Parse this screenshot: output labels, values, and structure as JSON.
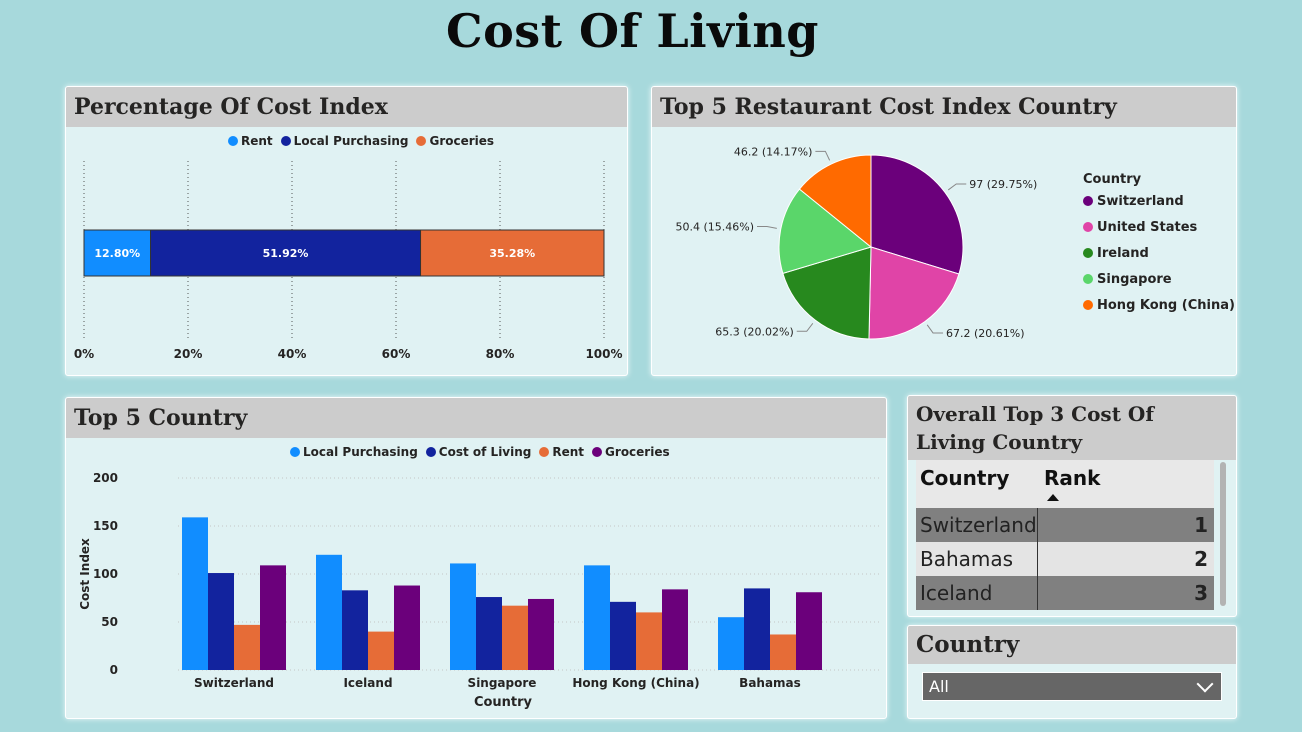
{
  "page": {
    "title": "Cost Of Living"
  },
  "panels": {
    "pct": {
      "title": "Percentage Of Cost Index"
    },
    "restaurant": {
      "title": "Top 5 Restaurant Cost Index Country",
      "legend_title": "Country"
    },
    "top5": {
      "title": "Top 5 Country"
    },
    "overall": {
      "title": "Overall Top 3 Cost Of Living Country"
    },
    "slicer": {
      "title": "Country",
      "value": "All"
    }
  },
  "rank_table": {
    "headers": [
      "Country",
      "Rank"
    ],
    "rows": [
      {
        "country": "Switzerland",
        "rank": "1"
      },
      {
        "country": "Bahamas",
        "rank": "2"
      },
      {
        "country": "Iceland",
        "rank": "3"
      }
    ]
  },
  "colors": {
    "rent": "#118dff",
    "local": "#12239e",
    "groceries": "#e66c37",
    "purple": "#6b007b",
    "switzerland": "#6b007b",
    "united_states": "#e044a7",
    "ireland": "#27891e",
    "singapore": "#5ad66a",
    "hong_kong": "#ff6a00"
  },
  "chart_data": [
    {
      "type": "bar",
      "orientation": "horizontal-stacked-100",
      "title": "Percentage Of Cost Index",
      "series": [
        {
          "name": "Rent",
          "value": 12.8,
          "label": "12.80%",
          "color": "#118dff"
        },
        {
          "name": "Local Purchasing",
          "value": 51.92,
          "label": "51.92%",
          "color": "#12239e"
        },
        {
          "name": "Groceries",
          "value": 35.28,
          "label": "35.28%",
          "color": "#e66c37"
        }
      ],
      "xticks": [
        "0%",
        "20%",
        "40%",
        "60%",
        "80%",
        "100%"
      ],
      "xlim": [
        0,
        100
      ],
      "legend": "top-center",
      "grid": true
    },
    {
      "type": "pie",
      "title": "Top 5 Restaurant Cost Index Country",
      "legend_title": "Country",
      "slices": [
        {
          "name": "Switzerland",
          "value": 97,
          "label": "97 (29.75%)",
          "color": "#6b007b"
        },
        {
          "name": "United States",
          "value": 67.2,
          "label": "67.2 (20.61%)",
          "color": "#e044a7"
        },
        {
          "name": "Ireland",
          "value": 65.3,
          "label": "65.3 (20.02%)",
          "color": "#27891e"
        },
        {
          "name": "Singapore",
          "value": 50.4,
          "label": "50.4 (15.46%)",
          "color": "#5ad66a"
        },
        {
          "name": "Hong Kong (China)",
          "value": 46.2,
          "label": "46.2 (14.17%)",
          "color": "#ff6a00"
        }
      ],
      "legend": "right"
    },
    {
      "type": "bar",
      "title": "Top 5 Country",
      "xlabel": "Country",
      "ylabel": "Cost Index",
      "ylim": [
        0,
        200
      ],
      "yticks": [
        "0",
        "50",
        "100",
        "150",
        "200"
      ],
      "categories": [
        "Switzerland",
        "Iceland",
        "Singapore",
        "Hong Kong (China)",
        "Bahamas"
      ],
      "series": [
        {
          "name": "Local Purchasing",
          "color": "#118dff",
          "values": [
            159,
            120,
            111,
            109,
            55
          ]
        },
        {
          "name": "Cost of Living",
          "color": "#12239e",
          "values": [
            101,
            83,
            76,
            71,
            85
          ]
        },
        {
          "name": "Rent",
          "color": "#e66c37",
          "values": [
            47,
            40,
            67,
            60,
            37
          ]
        },
        {
          "name": "Groceries",
          "color": "#6b007b",
          "values": [
            109,
            88,
            74,
            84,
            81
          ]
        }
      ],
      "legend": "top-center",
      "grid": true
    }
  ]
}
